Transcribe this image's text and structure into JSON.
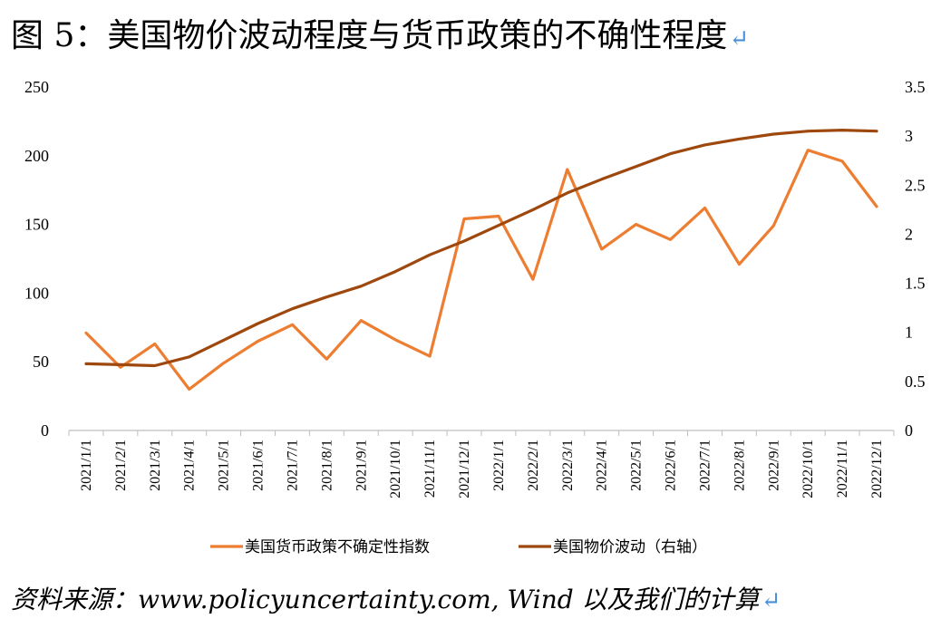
{
  "title": "图 5：美国物价波动程度与货币政策的不确性程度",
  "return_mark": "↵",
  "source": "资料来源：www.policyuncertainty.com, Wind 以及我们的计算",
  "colors": {
    "series_policy": "#ed7d31",
    "series_price": "#9e480e",
    "axis": "#bfbfbf"
  },
  "chart_data": {
    "type": "line",
    "x": [
      "2021/1/1",
      "2021/2/1",
      "2021/3/1",
      "2021/4/1",
      "2021/5/1",
      "2021/6/1",
      "2021/7/1",
      "2021/8/1",
      "2021/9/1",
      "2021/10/1",
      "2021/11/1",
      "2021/12/1",
      "2022/1/1",
      "2022/2/1",
      "2022/3/1",
      "2022/4/1",
      "2022/5/1",
      "2022/6/1",
      "2022/7/1",
      "2022/8/1",
      "2022/9/1",
      "2022/10/1",
      "2022/11/1",
      "2022/12/1"
    ],
    "y_left_ticks": [
      "0",
      "50",
      "100",
      "150",
      "200",
      "250"
    ],
    "y_right_ticks": [
      "0",
      "0.5",
      "1",
      "1.5",
      "2",
      "2.5",
      "3",
      "3.5"
    ],
    "ylim_left": [
      0,
      250
    ],
    "ylim_right": [
      0,
      3.5
    ],
    "legend_position": "bottom",
    "grid": false,
    "series": [
      {
        "name": "美国货币政策不确定性指数",
        "axis": "left",
        "values": [
          71,
          46,
          63,
          30,
          49,
          65,
          77,
          52,
          80,
          66,
          54,
          154,
          156,
          110,
          190,
          132,
          150,
          139,
          162,
          121,
          149,
          204,
          196,
          163
        ]
      },
      {
        "name": "美国物价波动（右轴）",
        "axis": "right",
        "values": [
          0.68,
          0.67,
          0.66,
          0.75,
          0.92,
          1.09,
          1.24,
          1.36,
          1.47,
          1.62,
          1.79,
          1.93,
          2.09,
          2.25,
          2.42,
          2.56,
          2.69,
          2.82,
          2.91,
          2.97,
          3.02,
          3.05,
          3.06,
          3.05
        ]
      }
    ]
  }
}
